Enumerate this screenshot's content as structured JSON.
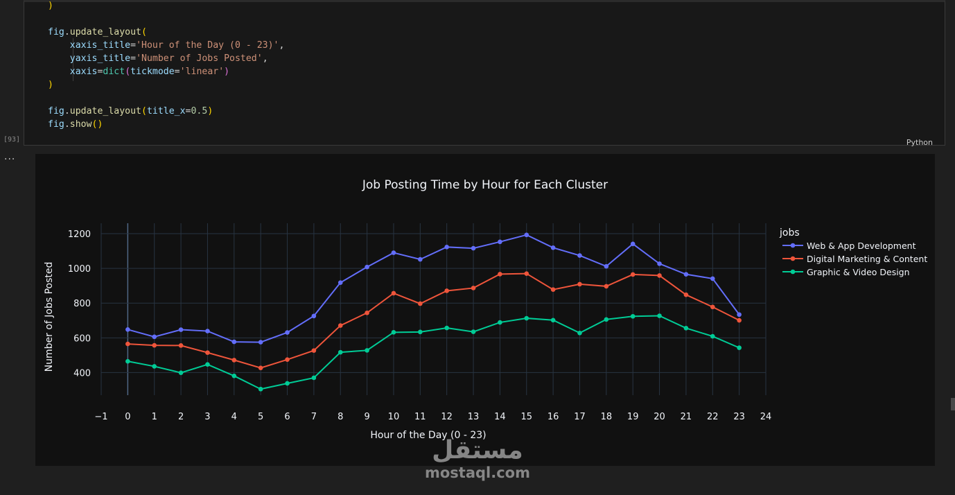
{
  "notebook": {
    "code_lines": [
      [
        {
          "t": ")",
          "c": "brk"
        }
      ],
      [],
      [
        {
          "t": "fig",
          "c": "var"
        },
        {
          "t": ".",
          "c": "def"
        },
        {
          "t": "update_layout",
          "c": "fn"
        },
        {
          "t": "(",
          "c": "brk"
        }
      ],
      [
        {
          "t": "    ",
          "c": "def"
        },
        {
          "t": "xaxis_title",
          "c": "var"
        },
        {
          "t": "=",
          "c": "def"
        },
        {
          "t": "'Hour of the Day (0 - 23)'",
          "c": "str"
        },
        {
          "t": ",",
          "c": "def"
        }
      ],
      [
        {
          "t": "    ",
          "c": "def"
        },
        {
          "t": "yaxis_title",
          "c": "var"
        },
        {
          "t": "=",
          "c": "def"
        },
        {
          "t": "'Number of Jobs Posted'",
          "c": "str"
        },
        {
          "t": ",",
          "c": "def"
        }
      ],
      [
        {
          "t": "    ",
          "c": "def"
        },
        {
          "t": "xaxis",
          "c": "var"
        },
        {
          "t": "=",
          "c": "def"
        },
        {
          "t": "dict",
          "c": "builtin"
        },
        {
          "t": "(",
          "c": "brk2"
        },
        {
          "t": "tickmode",
          "c": "var"
        },
        {
          "t": "=",
          "c": "def"
        },
        {
          "t": "'linear'",
          "c": "str"
        },
        {
          "t": ")",
          "c": "brk2"
        }
      ],
      [
        {
          "t": ")",
          "c": "brk"
        }
      ],
      [],
      [
        {
          "t": "fig",
          "c": "var"
        },
        {
          "t": ".",
          "c": "def"
        },
        {
          "t": "update_layout",
          "c": "fn"
        },
        {
          "t": "(",
          "c": "brk"
        },
        {
          "t": "title_x",
          "c": "var"
        },
        {
          "t": "=",
          "c": "def"
        },
        {
          "t": "0.5",
          "c": "num"
        },
        {
          "t": ")",
          "c": "brk"
        }
      ],
      [
        {
          "t": "fig",
          "c": "var"
        },
        {
          "t": ".",
          "c": "def"
        },
        {
          "t": "show",
          "c": "fn"
        },
        {
          "t": "()",
          "c": "brk"
        }
      ]
    ],
    "execution_count": "[93]",
    "language": "Python",
    "output_indicator": "..."
  },
  "chart_data": {
    "type": "line",
    "title": "Job Posting Time by Hour for Each Cluster",
    "xlabel": "Hour of the Day (0 - 23)",
    "ylabel": "Number of Jobs Posted",
    "legend_title": "jobs",
    "legend_position": "right",
    "grid": true,
    "xlim": [
      -1,
      24
    ],
    "ylim": [
      270,
      1260
    ],
    "x_ticks": [
      -1,
      0,
      1,
      2,
      3,
      4,
      5,
      6,
      7,
      8,
      9,
      10,
      11,
      12,
      13,
      14,
      15,
      16,
      17,
      18,
      19,
      20,
      21,
      22,
      23,
      24
    ],
    "x_tick_labels": [
      "−1",
      "0",
      "1",
      "2",
      "3",
      "4",
      "5",
      "6",
      "7",
      "8",
      "9",
      "10",
      "11",
      "12",
      "13",
      "14",
      "15",
      "16",
      "17",
      "18",
      "19",
      "20",
      "21",
      "22",
      "23",
      "24"
    ],
    "y_ticks": [
      400,
      600,
      800,
      1000,
      1200
    ],
    "x": [
      0,
      1,
      2,
      3,
      4,
      5,
      6,
      7,
      8,
      9,
      10,
      11,
      12,
      13,
      14,
      15,
      16,
      17,
      18,
      19,
      20,
      21,
      22,
      23
    ],
    "series": [
      {
        "name": " Web & App Development",
        "color": "#636efa",
        "values": [
          648,
          606,
          647,
          639,
          577,
          575,
          631,
          726,
          918,
          1008,
          1090,
          1052,
          1123,
          1116,
          1153,
          1193,
          1119,
          1074,
          1012,
          1141,
          1027,
          966,
          941,
          734
        ]
      },
      {
        "name": "Digital Marketing & Content",
        "color": "#ef553b",
        "values": [
          565,
          557,
          556,
          515,
          472,
          427,
          475,
          527,
          671,
          744,
          857,
          797,
          871,
          887,
          967,
          970,
          878,
          909,
          897,
          965,
          959,
          848,
          778,
          701
        ]
      },
      {
        "name": "Graphic & Video Design",
        "color": "#00cc96",
        "values": [
          465,
          436,
          399,
          447,
          381,
          305,
          338,
          370,
          517,
          528,
          632,
          634,
          657,
          635,
          689,
          713,
          702,
          628,
          706,
          724,
          727,
          656,
          609,
          543
        ]
      }
    ]
  },
  "watermark": {
    "arabic": "مستقل",
    "latin": "mostaql.com"
  }
}
